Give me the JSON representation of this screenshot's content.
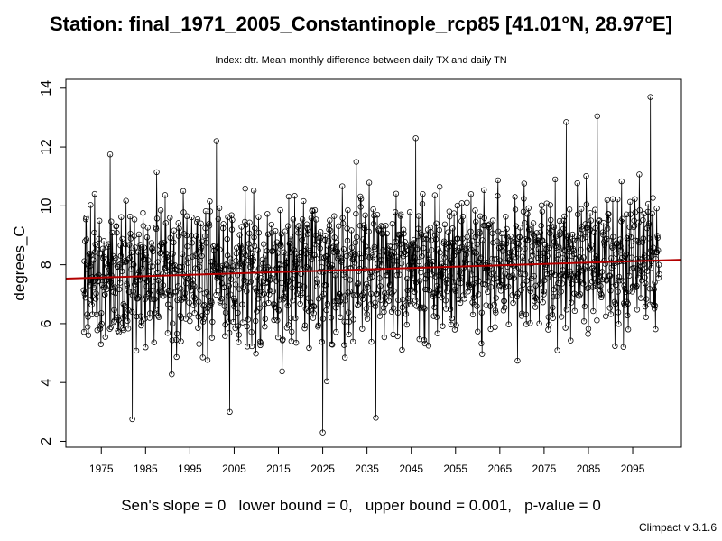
{
  "chart_data": {
    "type": "line",
    "title": "Station: final_1971_2005_Constantinople_rcp85 [41.01°N, 28.97°E]",
    "subtitle": "Index: dtr. Mean monthly difference between daily TX and daily TN",
    "ylabel": "degrees_C",
    "xlim": [
      1967,
      2106
    ],
    "ylim": [
      1.8,
      14.3
    ],
    "x_ticks": [
      1975,
      1985,
      1995,
      2005,
      2015,
      2025,
      2035,
      2045,
      2055,
      2065,
      2075,
      2085,
      2095
    ],
    "y_ticks": [
      2,
      4,
      6,
      8,
      10,
      12,
      14
    ],
    "series_range": [
      1971,
      2101
    ],
    "monthly_baseline_shape": [
      6.1,
      7.0,
      7.9,
      8.6,
      9.4,
      10.0,
      10.3,
      10.0,
      9.2,
      8.0,
      6.7,
      5.9
    ],
    "trend": {
      "start": [
        1967,
        7.53
      ],
      "end": [
        2106,
        8.17
      ],
      "color": "#b30000"
    },
    "annotations": [
      {
        "x": 2099,
        "y": 13.7
      },
      {
        "x": 2025,
        "y": 2.3
      },
      {
        "x": 2037,
        "y": 2.8
      },
      {
        "x": 1982,
        "y": 2.75
      },
      {
        "x": 2004,
        "y": 3.0
      },
      {
        "x": 1977,
        "y": 11.75
      },
      {
        "x": 2001,
        "y": 12.2
      },
      {
        "x": 2046,
        "y": 12.3
      },
      {
        "x": 2087,
        "y": 13.05
      },
      {
        "x": 2080,
        "y": 12.85
      }
    ],
    "grid": false,
    "legend": "none"
  },
  "footer": {
    "text": "Sen's slope = 0   lower bound = 0,   upper bound = 0.001,   p-value = 0"
  },
  "version": "Climpact v 3.1.6"
}
